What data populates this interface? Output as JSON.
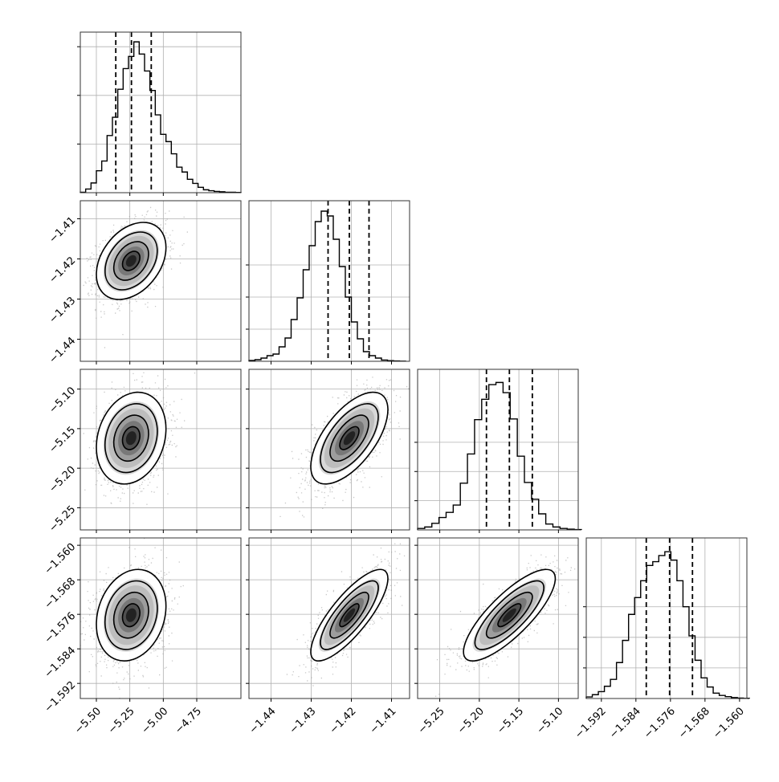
{
  "chart_data": {
    "type": "corner",
    "grid": true,
    "parameters": [
      {
        "range": [
          -5.62,
          -4.42
        ],
        "ticks": [
          -5.5,
          -5.25,
          -5.0,
          -4.75
        ],
        "tick_labels": [
          "−5.50",
          "−5.25",
          "−5.00",
          "−4.75"
        ]
      },
      {
        "range": [
          -1.4455,
          -1.4055
        ],
        "ticks": [
          -1.44,
          -1.43,
          -1.42,
          -1.41
        ],
        "tick_labels": [
          "−1.44",
          "−1.43",
          "−1.42",
          "−1.41"
        ]
      },
      {
        "range": [
          -5.278,
          -5.075
        ],
        "ticks": [
          -5.25,
          -5.2,
          -5.15,
          -5.1
        ],
        "tick_labels": [
          "−5.25",
          "−5.20",
          "−5.15",
          "−5.10"
        ]
      },
      {
        "range": [
          -1.5955,
          -1.5583
        ],
        "ticks": [
          -1.592,
          -1.584,
          -1.576,
          -1.568,
          -1.56
        ],
        "tick_labels": [
          "−1.592",
          "−1.584",
          "−1.576",
          "−1.568",
          "−1.560"
        ]
      }
    ],
    "quantiles": [
      [
        -5.355,
        -5.238,
        -5.09
      ],
      [
        -1.4258,
        -1.4205,
        -1.4156
      ],
      [
        -5.191,
        -5.162,
        -5.133
      ],
      [
        -1.5816,
        -1.5762,
        -1.5709
      ]
    ],
    "histograms": [
      {
        "edges": [
          -5.62,
          -5.58,
          -5.54,
          -5.5,
          -5.46,
          -5.42,
          -5.38,
          -5.34,
          -5.3,
          -5.26,
          -5.22,
          -5.18,
          -5.14,
          -5.1,
          -5.06,
          -5.02,
          -4.98,
          -4.94,
          -4.9,
          -4.86,
          -4.82,
          -4.78,
          -4.74,
          -4.7,
          -4.66,
          -4.62,
          -4.58,
          -4.54,
          -4.5,
          -4.46,
          -4.42
        ],
        "counts": [
          2,
          15,
          40,
          90,
          130,
          235,
          310,
          425,
          510,
          560,
          620,
          570,
          500,
          420,
          320,
          240,
          210,
          160,
          105,
          85,
          55,
          38,
          22,
          12,
          8,
          5,
          4,
          2,
          2,
          1
        ],
        "ymax": 660,
        "yticks": [
          200,
          400,
          600
        ]
      },
      {
        "edges": [
          -1.4455,
          -1.444,
          -1.4425,
          -1.441,
          -1.4395,
          -1.438,
          -1.4365,
          -1.435,
          -1.4335,
          -1.432,
          -1.4305,
          -1.429,
          -1.4275,
          -1.426,
          -1.4245,
          -1.423,
          -1.4215,
          -1.42,
          -1.4185,
          -1.417,
          -1.4155,
          -1.414,
          -1.4125,
          -1.411,
          -1.4095,
          -1.408,
          -1.4065
        ],
        "counts": [
          5,
          10,
          20,
          35,
          45,
          90,
          145,
          260,
          395,
          570,
          720,
          870,
          935,
          905,
          760,
          590,
          400,
          245,
          140,
          60,
          35,
          20,
          8,
          4,
          2,
          1
        ],
        "ymax": 1000,
        "yticks": [
          200,
          400,
          600
        ]
      },
      {
        "edges": [
          -5.278,
          -5.269,
          -5.26,
          -5.251,
          -5.242,
          -5.233,
          -5.224,
          -5.215,
          -5.206,
          -5.197,
          -5.188,
          -5.179,
          -5.17,
          -5.161,
          -5.152,
          -5.143,
          -5.134,
          -5.125,
          -5.116,
          -5.107,
          -5.098,
          -5.089,
          -5.08,
          -5.071
        ],
        "counts": [
          10,
          20,
          45,
          85,
          120,
          170,
          320,
          520,
          755,
          895,
          995,
          1010,
          940,
          760,
          505,
          325,
          210,
          110,
          40,
          20,
          10,
          5,
          2
        ],
        "ymax": 1100,
        "yticks": [
          200,
          400,
          600
        ]
      },
      {
        "edges": [
          -1.5955,
          -1.5941,
          -1.5927,
          -1.5913,
          -1.5899,
          -1.5885,
          -1.5871,
          -1.5857,
          -1.5843,
          -1.5829,
          -1.5815,
          -1.5801,
          -1.5787,
          -1.5773,
          -1.5759,
          -1.5745,
          -1.5731,
          -1.5717,
          -1.5703,
          -1.5689,
          -1.5675,
          -1.5661,
          -1.5647,
          -1.5633,
          -1.5619,
          -1.5605,
          -1.5591,
          -1.5577
        ],
        "counts": [
          10,
          25,
          45,
          80,
          125,
          235,
          380,
          550,
          660,
          770,
          870,
          895,
          935,
          960,
          905,
          770,
          600,
          410,
          250,
          135,
          75,
          35,
          20,
          12,
          6,
          3,
          1
        ],
        "ymax": 1050,
        "yticks": [
          200,
          400,
          600
        ]
      }
    ],
    "pairs": [
      {
        "row": 1,
        "col": 0,
        "center": [
          -5.24,
          -1.4205
        ],
        "sigma": [
          0.13,
          0.0048
        ],
        "rho": 0.35
      },
      {
        "row": 2,
        "col": 0,
        "center": [
          -5.24,
          -5.162
        ],
        "sigma": [
          0.13,
          0.029
        ],
        "rho": 0.2
      },
      {
        "row": 2,
        "col": 1,
        "center": [
          -1.4205,
          -5.162
        ],
        "sigma": [
          0.0048,
          0.029
        ],
        "rho": 0.62
      },
      {
        "row": 3,
        "col": 0,
        "center": [
          -5.24,
          -1.5762
        ],
        "sigma": [
          0.13,
          0.0053
        ],
        "rho": 0.2
      },
      {
        "row": 3,
        "col": 1,
        "center": [
          -1.4205,
          -1.5762
        ],
        "sigma": [
          0.0048,
          0.0053
        ],
        "rho": 0.8
      },
      {
        "row": 3,
        "col": 2,
        "center": [
          -5.162,
          -1.5762
        ],
        "sigma": [
          0.029,
          0.0053
        ],
        "rho": 0.8
      }
    ],
    "contour_levels_sigma": [
      0.5,
      1.0,
      1.5,
      2.0
    ],
    "colors": {
      "line": "#000000",
      "scatter": "#9a9a9a",
      "grid": "#b0b0b0",
      "frame": "#333333"
    }
  }
}
